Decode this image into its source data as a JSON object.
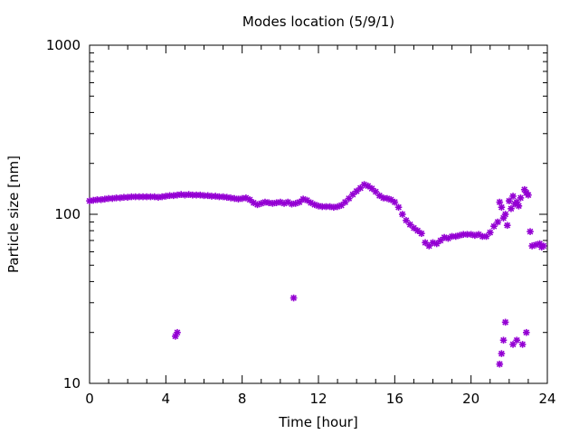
{
  "chart_data": {
    "type": "scatter",
    "title": "Modes location (5/9/1)",
    "xlabel": "Time [hour]",
    "ylabel": "Particle size [nm]",
    "xlim": [
      0,
      24
    ],
    "ylim": [
      10,
      1000
    ],
    "yscale": "log",
    "x_ticks": [
      0,
      4,
      8,
      12,
      16,
      20,
      24
    ],
    "x_tick_labels": [
      "0",
      "4",
      "8",
      "12",
      "16",
      "20",
      "24"
    ],
    "y_ticks": [
      10,
      100,
      1000
    ],
    "y_tick_labels": [
      "10",
      "100",
      "1000"
    ],
    "grid": false,
    "legend": "none",
    "marker_color": "#9400d3",
    "series": [
      {
        "name": "",
        "points": [
          [
            0.0,
            120
          ],
          [
            0.2,
            121
          ],
          [
            0.4,
            122
          ],
          [
            0.6,
            122
          ],
          [
            0.8,
            123
          ],
          [
            1.0,
            124
          ],
          [
            1.2,
            124
          ],
          [
            1.4,
            125
          ],
          [
            1.6,
            125
          ],
          [
            1.8,
            126
          ],
          [
            2.0,
            126
          ],
          [
            2.2,
            127
          ],
          [
            2.4,
            127
          ],
          [
            2.6,
            127
          ],
          [
            2.8,
            127
          ],
          [
            3.0,
            127
          ],
          [
            3.2,
            127
          ],
          [
            3.4,
            127
          ],
          [
            3.6,
            126
          ],
          [
            3.8,
            127
          ],
          [
            4.0,
            128
          ],
          [
            4.2,
            129
          ],
          [
            4.4,
            129
          ],
          [
            4.6,
            130
          ],
          [
            4.8,
            131
          ],
          [
            5.0,
            130
          ],
          [
            5.2,
            131
          ],
          [
            5.4,
            130
          ],
          [
            5.6,
            130
          ],
          [
            5.8,
            130
          ],
          [
            6.0,
            129
          ],
          [
            6.2,
            129
          ],
          [
            6.4,
            128
          ],
          [
            6.6,
            128
          ],
          [
            6.8,
            127
          ],
          [
            7.0,
            127
          ],
          [
            7.2,
            126
          ],
          [
            7.4,
            125
          ],
          [
            7.6,
            124
          ],
          [
            7.8,
            123
          ],
          [
            8.0,
            124
          ],
          [
            8.2,
            125
          ],
          [
            8.4,
            122
          ],
          [
            8.6,
            117
          ],
          [
            8.8,
            114
          ],
          [
            9.0,
            116
          ],
          [
            9.2,
            118
          ],
          [
            9.4,
            117
          ],
          [
            9.6,
            116
          ],
          [
            9.8,
            117
          ],
          [
            10.0,
            118
          ],
          [
            10.2,
            116
          ],
          [
            10.4,
            118
          ],
          [
            10.6,
            115
          ],
          [
            10.8,
            116
          ],
          [
            11.0,
            118
          ],
          [
            11.2,
            123
          ],
          [
            11.4,
            121
          ],
          [
            11.6,
            117
          ],
          [
            11.8,
            114
          ],
          [
            12.0,
            112
          ],
          [
            12.2,
            111
          ],
          [
            12.4,
            111
          ],
          [
            12.6,
            111
          ],
          [
            12.8,
            110
          ],
          [
            13.0,
            111
          ],
          [
            13.2,
            113
          ],
          [
            13.4,
            118
          ],
          [
            13.6,
            124
          ],
          [
            13.8,
            131
          ],
          [
            14.0,
            137
          ],
          [
            14.2,
            143
          ],
          [
            14.4,
            150
          ],
          [
            14.6,
            147
          ],
          [
            14.8,
            142
          ],
          [
            15.0,
            136
          ],
          [
            15.2,
            129
          ],
          [
            15.4,
            125
          ],
          [
            15.6,
            124
          ],
          [
            15.8,
            122
          ],
          [
            16.0,
            118
          ],
          [
            16.2,
            110
          ],
          [
            16.4,
            100
          ],
          [
            16.6,
            92
          ],
          [
            16.8,
            87
          ],
          [
            17.0,
            83
          ],
          [
            17.2,
            80
          ],
          [
            17.4,
            77
          ],
          [
            17.6,
            68
          ],
          [
            17.8,
            65
          ],
          [
            18.0,
            68
          ],
          [
            18.2,
            67
          ],
          [
            18.4,
            70
          ],
          [
            18.6,
            73
          ],
          [
            18.8,
            72
          ],
          [
            19.0,
            74
          ],
          [
            19.2,
            74
          ],
          [
            19.4,
            75
          ],
          [
            19.6,
            76
          ],
          [
            19.8,
            76
          ],
          [
            20.0,
            76
          ],
          [
            20.2,
            75
          ],
          [
            20.4,
            76
          ],
          [
            20.6,
            74
          ],
          [
            20.8,
            74
          ],
          [
            21.0,
            78
          ],
          [
            21.2,
            85
          ],
          [
            21.4,
            90
          ],
          [
            21.6,
            110
          ],
          [
            21.8,
            100
          ],
          [
            22.0,
            120
          ],
          [
            22.2,
            128
          ],
          [
            22.4,
            118
          ],
          [
            22.6,
            125
          ],
          [
            22.8,
            140
          ],
          [
            23.0,
            130
          ],
          [
            23.2,
            65
          ],
          [
            23.4,
            66
          ],
          [
            23.6,
            67
          ],
          [
            23.8,
            65
          ],
          [
            21.5,
            118
          ],
          [
            21.7,
            95
          ],
          [
            21.9,
            86
          ],
          [
            22.1,
            108
          ],
          [
            22.3,
            115
          ],
          [
            22.5,
            112
          ],
          [
            22.9,
            134
          ],
          [
            23.1,
            79
          ],
          [
            23.7,
            64
          ],
          [
            4.5,
            19
          ],
          [
            4.6,
            20
          ],
          [
            10.7,
            32
          ],
          [
            21.5,
            13
          ],
          [
            21.6,
            15
          ],
          [
            21.7,
            18
          ],
          [
            21.8,
            23
          ],
          [
            22.2,
            17
          ],
          [
            22.4,
            18
          ],
          [
            22.7,
            17
          ],
          [
            22.9,
            20
          ]
        ]
      }
    ]
  }
}
